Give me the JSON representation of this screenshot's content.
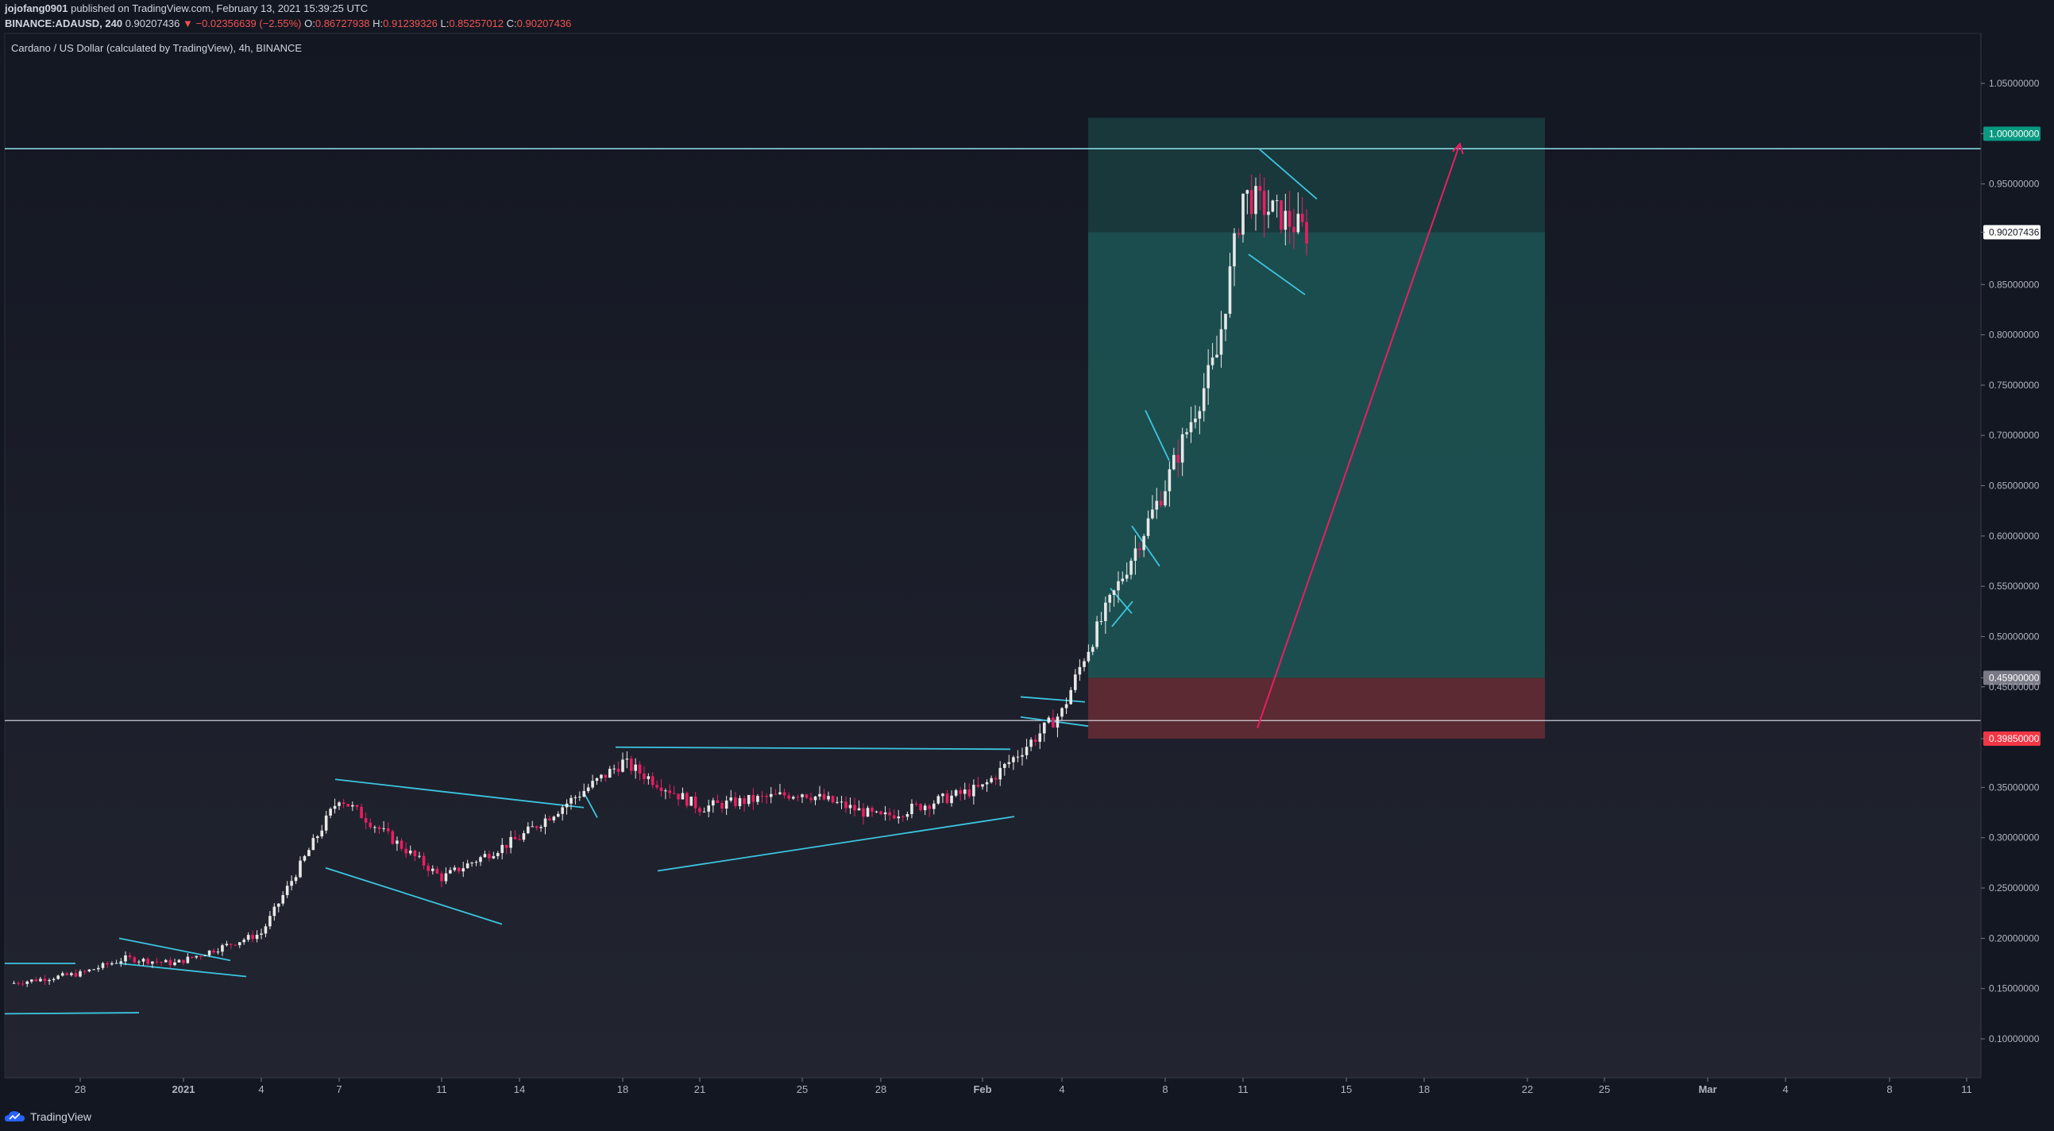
{
  "header": {
    "author": "jojofang0901",
    "published_text": "published on TradingView.com, February 13, 2021 15:39:25 UTC",
    "symbol": "BINANCE:ADAUSD, 240",
    "last": "0.90207436",
    "change": "▼ −0.02356639 (−2.55%)",
    "o_label": "O:",
    "o_value": "0.86727938",
    "h_label": "H:",
    "h_value": "0.91239326",
    "l_label": "L:",
    "l_value": "0.85257012",
    "c_label": "C:",
    "c_value": "0.90207436"
  },
  "chart_title": "Cardano / US Dollar (calculated by TradingView), 4h, BINANCE",
  "footer": {
    "brand": "TradingView"
  },
  "colors": {
    "background_top": "#131722",
    "background_bottom": "#20232d",
    "up_candle": "#e8e8e8",
    "down_candle": "#e91e63",
    "trendline": "#3cc5e0",
    "profit_zone": "#1d5f5c",
    "stop_zone": "#6b2d34",
    "arrow": "#e91e63",
    "target_badge": "#089981",
    "stop_badge": "#f23645"
  },
  "price_axis": {
    "labels": [
      "1.05000000",
      "1.00000000",
      "0.95000000",
      "0.90207436",
      "0.85000000",
      "0.80000000",
      "0.75000000",
      "0.70000000",
      "0.65000000",
      "0.60000000",
      "0.55000000",
      "0.50000000",
      "0.45900000",
      "0.45000000",
      "0.39850000",
      "0.35000000",
      "0.30000000",
      "0.25000000",
      "0.20000000",
      "0.15000000",
      "0.10000000"
    ]
  },
  "time_axis": {
    "labels": [
      "28",
      "2021",
      "4",
      "7",
      "11",
      "14",
      "18",
      "21",
      "25",
      "28",
      "Feb",
      "4",
      "8",
      "11",
      "15",
      "18",
      "22",
      "25",
      "Mar",
      "4",
      "8",
      "11"
    ]
  },
  "chart_data": {
    "type": "candlestick",
    "symbol": "BINANCE:ADAUSD",
    "interval": "4h",
    "ylim": [
      0.07,
      1.08
    ],
    "long_position": {
      "entry": 0.459,
      "target": 1.0,
      "stop": 0.3985
    },
    "horizontal_lines": [
      0.985,
      0.4165
    ],
    "last_price": 0.90207436,
    "daily_approx_close": [
      {
        "date": "Dec 25",
        "close": 0.155
      },
      {
        "date": "Dec 28",
        "close": 0.165
      },
      {
        "date": "Dec 30",
        "close": 0.18
      },
      {
        "date": "Jan 2",
        "close": 0.175
      },
      {
        "date": "Jan 4",
        "close": 0.205
      },
      {
        "date": "Jan 7",
        "close": 0.34
      },
      {
        "date": "Jan 11",
        "close": 0.26
      },
      {
        "date": "Jan 14",
        "close": 0.3
      },
      {
        "date": "Jan 18",
        "close": 0.375
      },
      {
        "date": "Jan 21",
        "close": 0.33
      },
      {
        "date": "Jan 25",
        "close": 0.345
      },
      {
        "date": "Jan 28",
        "close": 0.32
      },
      {
        "date": "Feb 1",
        "close": 0.35
      },
      {
        "date": "Feb 4",
        "close": 0.425
      },
      {
        "date": "Feb 5",
        "close": 0.48
      },
      {
        "date": "Feb 8",
        "close": 0.65
      },
      {
        "date": "Feb 10",
        "close": 0.78
      },
      {
        "date": "Feb 11",
        "close": 0.94
      },
      {
        "date": "Feb 13",
        "close": 0.902
      }
    ]
  }
}
